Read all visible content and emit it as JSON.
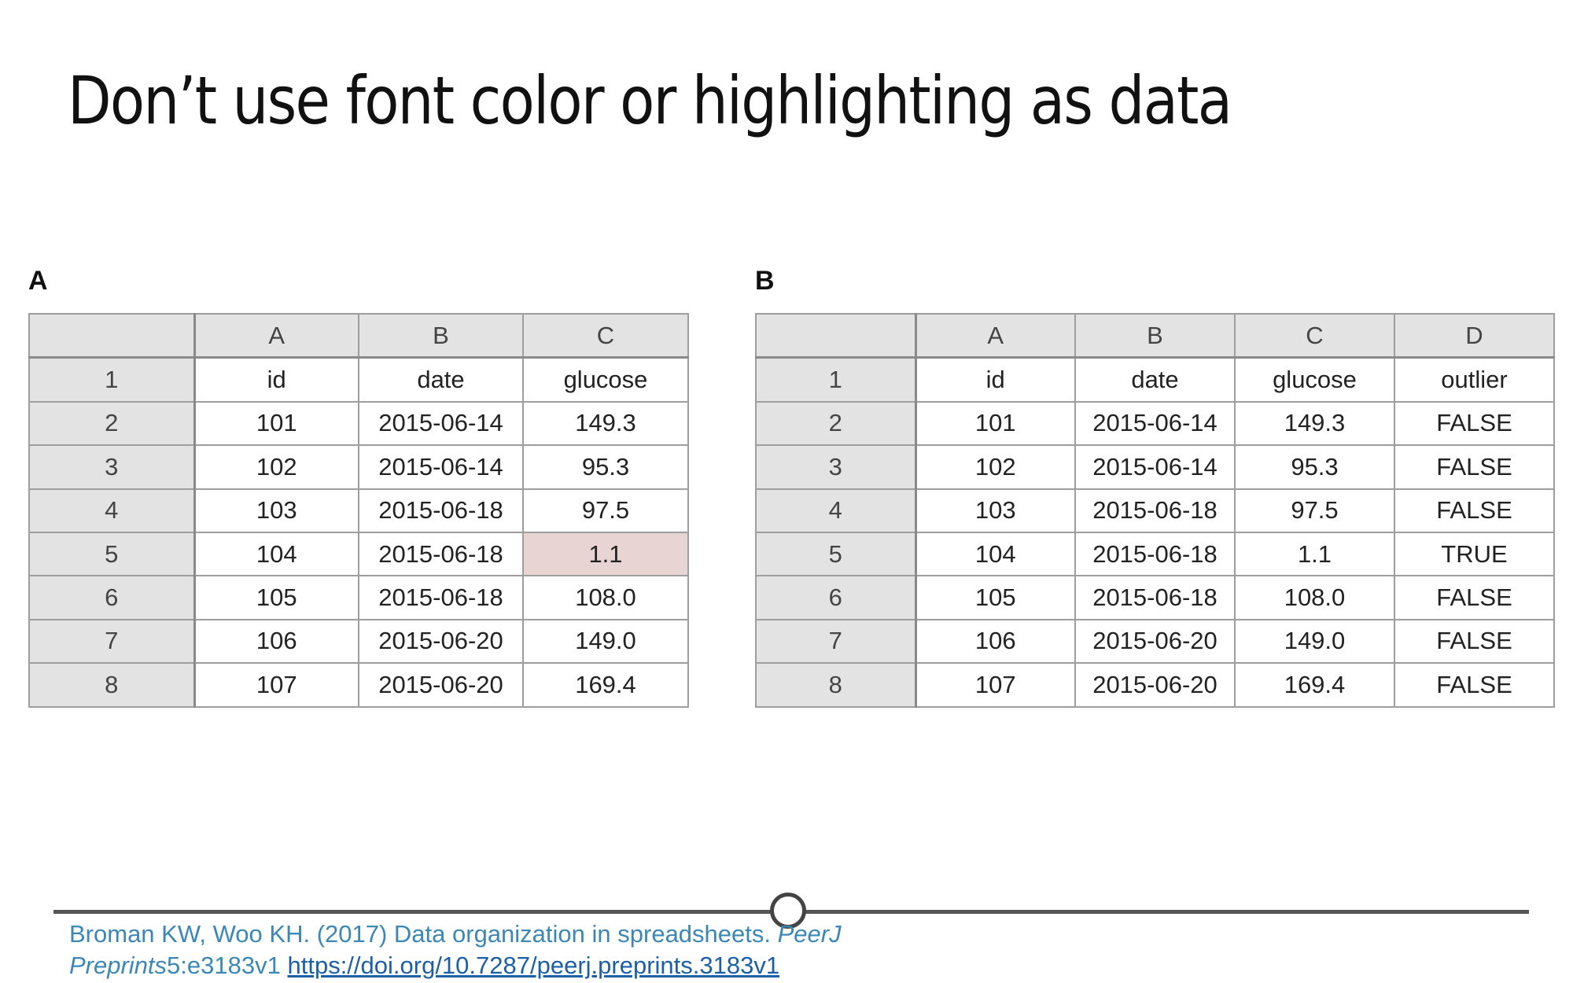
{
  "slide": {
    "title": "Don’t use font color or highlighting as data"
  },
  "panel_a": {
    "label": "A",
    "columns": [
      "A",
      "B",
      "C"
    ],
    "row_numbers": [
      "1",
      "2",
      "3",
      "4",
      "5",
      "6",
      "7",
      "8"
    ],
    "rows": [
      [
        "id",
        "date",
        "glucose"
      ],
      [
        "101",
        "2015-06-14",
        "149.3"
      ],
      [
        "102",
        "2015-06-14",
        "95.3"
      ],
      [
        "103",
        "2015-06-18",
        "97.5"
      ],
      [
        "104",
        "2015-06-18",
        "1.1"
      ],
      [
        "105",
        "2015-06-18",
        "108.0"
      ],
      [
        "106",
        "2015-06-20",
        "149.0"
      ],
      [
        "107",
        "2015-06-20",
        "169.4"
      ]
    ],
    "highlight_color": "#e9d4d4",
    "highlighted_cell": "C5"
  },
  "panel_b": {
    "label": "B",
    "columns": [
      "A",
      "B",
      "C",
      "D"
    ],
    "row_numbers": [
      "1",
      "2",
      "3",
      "4",
      "5",
      "6",
      "7",
      "8"
    ],
    "rows": [
      [
        "id",
        "date",
        "glucose",
        "outlier"
      ],
      [
        "101",
        "2015-06-14",
        "149.3",
        "FALSE"
      ],
      [
        "102",
        "2015-06-14",
        "95.3",
        "FALSE"
      ],
      [
        "103",
        "2015-06-18",
        "97.5",
        "FALSE"
      ],
      [
        "104",
        "2015-06-18",
        "1.1",
        "TRUE"
      ],
      [
        "105",
        "2015-06-18",
        "108.0",
        "FALSE"
      ],
      [
        "106",
        "2015-06-20",
        "149.0",
        "FALSE"
      ],
      [
        "107",
        "2015-06-20",
        "169.4",
        "FALSE"
      ]
    ]
  },
  "citation": {
    "authors": "Broman KW, Woo KH. (2017) Data organization in spreadsheets.",
    "journal": "PeerJ Preprints",
    "volume_ref": "5:e3183v1",
    "doi": "https://doi.org/10.7287/peerj.preprints.3183v1"
  },
  "colors": {
    "citation_text": "#3b87b5",
    "header_fill": "#e3e3e3",
    "grid_line": "#9e9e9e"
  }
}
